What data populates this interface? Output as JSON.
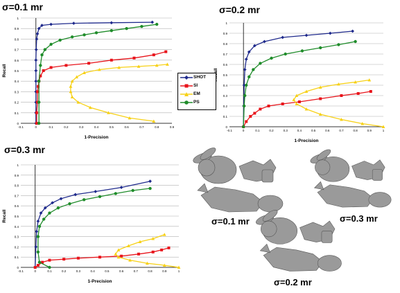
{
  "colors": {
    "SHOT": "#1f2a8c",
    "SI": "#e8141b",
    "EM": "#f7d117",
    "PS": "#1f8c2a"
  },
  "legend": [
    "SHOT",
    "SI",
    "EM",
    "PS"
  ],
  "chart_data": [
    {
      "type": "line",
      "title": "σ=0.1 mr",
      "xlabel": "1-Precision",
      "ylabel": "Recall",
      "xlim": [
        -0.1,
        0.9
      ],
      "ylim": [
        0,
        1.0
      ],
      "xticks": [
        "-0.1",
        "0",
        "0.1",
        "0.2",
        "0.3",
        "0.4",
        "0.5",
        "0.6",
        "0.7",
        "0.8",
        "0.9"
      ],
      "yticks": [
        "0",
        "0.1",
        "0.2",
        "0.3",
        "0.4",
        "0.5",
        "0.6",
        "0.7",
        "0.8",
        "0.9",
        "1"
      ],
      "grid": true,
      "series": [
        {
          "name": "SHOT",
          "x": [
            0,
            0,
            0,
            0,
            0,
            0,
            0,
            0.002,
            0.005,
            0.01,
            0.02,
            0.04,
            0.1,
            0.25,
            0.5,
            0.77
          ],
          "y": [
            0,
            0.1,
            0.2,
            0.3,
            0.4,
            0.5,
            0.6,
            0.7,
            0.8,
            0.85,
            0.9,
            0.93,
            0.94,
            0.95,
            0.955,
            0.96
          ]
        },
        {
          "name": "SI",
          "x": [
            0.005,
            0.005,
            0.01,
            0.01,
            0.015,
            0.02,
            0.03,
            0.05,
            0.1,
            0.2,
            0.35,
            0.5,
            0.65,
            0.78,
            0.86
          ],
          "y": [
            0,
            0.1,
            0.2,
            0.3,
            0.35,
            0.4,
            0.45,
            0.5,
            0.53,
            0.55,
            0.57,
            0.6,
            0.62,
            0.65,
            0.68
          ]
        },
        {
          "name": "EM",
          "x": [
            0.78,
            0.62,
            0.48,
            0.36,
            0.28,
            0.24,
            0.23,
            0.23,
            0.24,
            0.27,
            0.32,
            0.42,
            0.55,
            0.68,
            0.8,
            0.87
          ],
          "y": [
            0.02,
            0.05,
            0.1,
            0.15,
            0.2,
            0.25,
            0.3,
            0.35,
            0.4,
            0.44,
            0.48,
            0.51,
            0.53,
            0.54,
            0.55,
            0.56
          ]
        },
        {
          "name": "PS",
          "x": [
            0.02,
            0.02,
            0.02,
            0.03,
            0.04,
            0.06,
            0.1,
            0.16,
            0.24,
            0.32,
            0.4,
            0.5,
            0.6,
            0.7,
            0.8
          ],
          "y": [
            0,
            0.2,
            0.4,
            0.55,
            0.65,
            0.7,
            0.75,
            0.79,
            0.82,
            0.84,
            0.86,
            0.88,
            0.9,
            0.92,
            0.94
          ]
        }
      ]
    },
    {
      "type": "line",
      "title": "σ=0.2 mr",
      "xlabel": "1-Precision",
      "ylabel": "Recall",
      "xlim": [
        -0.1,
        1.0
      ],
      "ylim": [
        0,
        1.0
      ],
      "xticks": [
        "-0.1",
        "0",
        "0.1",
        "0.2",
        "0.3",
        "0.4",
        "0.5",
        "0.6",
        "0.7",
        "0.8",
        "0.9",
        "1"
      ],
      "yticks": [
        "0",
        "0.1",
        "0.2",
        "0.3",
        "0.4",
        "0.5",
        "0.6",
        "0.7",
        "0.8",
        "0.9",
        "1"
      ],
      "grid": true,
      "series": [
        {
          "name": "SHOT",
          "x": [
            0,
            0.002,
            0.005,
            0.01,
            0.02,
            0.04,
            0.08,
            0.15,
            0.28,
            0.45,
            0.62,
            0.78
          ],
          "y": [
            0,
            0.2,
            0.4,
            0.55,
            0.65,
            0.72,
            0.78,
            0.82,
            0.86,
            0.88,
            0.9,
            0.92
          ]
        },
        {
          "name": "SI",
          "x": [
            0,
            0.02,
            0.05,
            0.08,
            0.12,
            0.18,
            0.28,
            0.4,
            0.55,
            0.7,
            0.82,
            0.91
          ],
          "y": [
            0,
            0.05,
            0.1,
            0.13,
            0.17,
            0.2,
            0.22,
            0.24,
            0.27,
            0.3,
            0.32,
            0.34
          ]
        },
        {
          "name": "EM",
          "x": [
            1.0,
            0.85,
            0.7,
            0.55,
            0.45,
            0.38,
            0.36,
            0.38,
            0.45,
            0.55,
            0.68,
            0.8,
            0.9
          ],
          "y": [
            0,
            0.03,
            0.07,
            0.12,
            0.17,
            0.22,
            0.26,
            0.3,
            0.34,
            0.38,
            0.41,
            0.43,
            0.45
          ]
        },
        {
          "name": "PS",
          "x": [
            0,
            0.005,
            0.01,
            0.02,
            0.04,
            0.07,
            0.12,
            0.2,
            0.3,
            0.42,
            0.55,
            0.68,
            0.8
          ],
          "y": [
            0,
            0.2,
            0.3,
            0.4,
            0.48,
            0.55,
            0.61,
            0.66,
            0.7,
            0.73,
            0.76,
            0.79,
            0.82
          ]
        }
      ]
    },
    {
      "type": "line",
      "title": "σ=0.3 mr",
      "xlabel": "1-Precision",
      "ylabel": "Recall",
      "xlim": [
        -0.1,
        1.0
      ],
      "ylim": [
        0,
        1.0
      ],
      "xticks": [
        "-0.1",
        "0",
        "0.1",
        "0.2",
        "0.3",
        "0.4",
        "0.5",
        "0.6",
        "0.7",
        "0.8",
        "0.9",
        "1"
      ],
      "yticks": [
        "0",
        "0.1",
        "0.2",
        "0.3",
        "0.4",
        "0.5",
        "0.6",
        "0.7",
        "0.8",
        "0.9",
        "1"
      ],
      "grid": true,
      "series": [
        {
          "name": "SHOT",
          "x": [
            0,
            0.005,
            0.01,
            0.02,
            0.04,
            0.07,
            0.12,
            0.18,
            0.28,
            0.42,
            0.6,
            0.8
          ],
          "y": [
            0,
            0.2,
            0.35,
            0.45,
            0.53,
            0.58,
            0.63,
            0.67,
            0.71,
            0.74,
            0.78,
            0.84
          ]
        },
        {
          "name": "SI",
          "x": [
            0,
            0.02,
            0.05,
            0.1,
            0.2,
            0.3,
            0.45,
            0.6,
            0.72,
            0.82,
            0.88,
            0.93
          ],
          "y": [
            0,
            0.02,
            0.05,
            0.07,
            0.08,
            0.09,
            0.1,
            0.11,
            0.13,
            0.15,
            0.17,
            0.19
          ]
        },
        {
          "name": "EM",
          "x": [
            1.0,
            0.9,
            0.78,
            0.66,
            0.58,
            0.56,
            0.58,
            0.65,
            0.73,
            0.82,
            0.9
          ],
          "y": [
            0,
            0.02,
            0.04,
            0.07,
            0.1,
            0.13,
            0.17,
            0.21,
            0.25,
            0.28,
            0.32
          ]
        },
        {
          "name": "PS",
          "x": [
            0.1,
            0.03,
            0.02,
            0.02,
            0.03,
            0.06,
            0.1,
            0.16,
            0.24,
            0.34,
            0.45,
            0.56,
            0.68,
            0.8
          ],
          "y": [
            0,
            0.05,
            0.15,
            0.3,
            0.4,
            0.47,
            0.53,
            0.58,
            0.62,
            0.66,
            0.69,
            0.72,
            0.75,
            0.77
          ]
        }
      ]
    }
  ],
  "model_captions": [
    "σ=0.1 mr",
    "σ=0.3 mr",
    "σ=0.2 mr"
  ]
}
